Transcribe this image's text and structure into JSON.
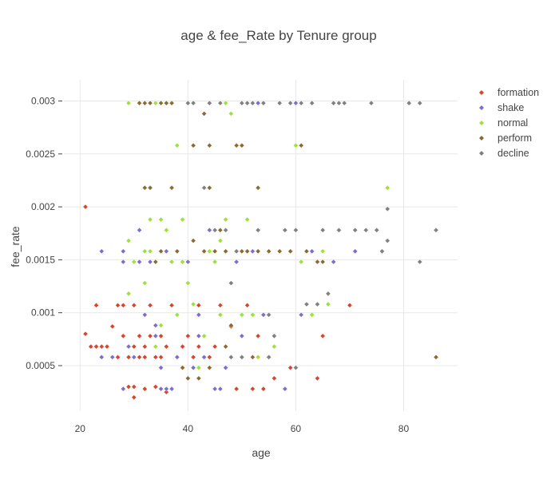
{
  "chart_data": {
    "type": "scatter",
    "title": "age & fee_Rate by Tenure group",
    "xlabel": "age",
    "ylabel": "fee_rate",
    "xlim": [
      17,
      90
    ],
    "ylim": [
      7e-05,
      0.0032
    ],
    "x_ticks": [
      20,
      40,
      60,
      80
    ],
    "y_ticks": [
      0.0005,
      0.001,
      0.0015,
      0.002,
      0.0025,
      0.003
    ],
    "y_tick_labels": [
      "0.0005",
      "0.001",
      "0.0015",
      "0.002",
      "0.0025",
      "0.003"
    ],
    "grid": true,
    "legend_position": "top-right",
    "series": [
      {
        "name": "formation",
        "color": "#d6452c",
        "points": [
          [
            21,
            0.002
          ],
          [
            21,
            0.0008
          ],
          [
            22,
            0.00068
          ],
          [
            23,
            0.00068
          ],
          [
            23,
            0.00107
          ],
          [
            24,
            0.00068
          ],
          [
            25,
            0.00068
          ],
          [
            26,
            0.00087
          ],
          [
            27,
            0.00058
          ],
          [
            27,
            0.00107
          ],
          [
            28,
            0.00107
          ],
          [
            28,
            0.00078
          ],
          [
            29,
            0.00058
          ],
          [
            29,
            0.0003
          ],
          [
            30,
            0.0003
          ],
          [
            30,
            0.00068
          ],
          [
            30,
            0.00107
          ],
          [
            30,
            0.0002
          ],
          [
            31,
            0.00078
          ],
          [
            31,
            0.00058
          ],
          [
            32,
            0.00058
          ],
          [
            32,
            0.00028
          ],
          [
            32,
            0.00068
          ],
          [
            33,
            0.00078
          ],
          [
            33,
            0.00107
          ],
          [
            34,
            0.00058
          ],
          [
            34,
            0.0003
          ],
          [
            35,
            0.00058
          ],
          [
            35,
            0.00078
          ],
          [
            36,
            0.00025
          ],
          [
            36,
            0.00068
          ],
          [
            37,
            0.00028
          ],
          [
            37,
            0.00107
          ],
          [
            38,
            0.00058
          ],
          [
            39,
            0.00068
          ],
          [
            40,
            0.00078
          ],
          [
            41,
            0.00058
          ],
          [
            42,
            0.00107
          ],
          [
            42,
            0.00068
          ],
          [
            43,
            0.00058
          ],
          [
            44,
            0.00058
          ],
          [
            45,
            0.00068
          ],
          [
            46,
            0.00107
          ],
          [
            47,
            0.00048
          ],
          [
            48,
            0.00087
          ],
          [
            49,
            0.00028
          ],
          [
            50,
            0.00058
          ],
          [
            51,
            0.00107
          ],
          [
            52,
            0.00028
          ],
          [
            53,
            0.00078
          ],
          [
            54,
            0.00028
          ],
          [
            55,
            0.00058
          ],
          [
            56,
            0.00038
          ],
          [
            58,
            0.00028
          ],
          [
            59,
            0.00048
          ],
          [
            64,
            0.00038
          ],
          [
            65,
            0.00078
          ],
          [
            70,
            0.00107
          ]
        ]
      },
      {
        "name": "shake",
        "color": "#7a6fd0",
        "points": [
          [
            24,
            0.00158
          ],
          [
            24,
            0.00058
          ],
          [
            26,
            0.00058
          ],
          [
            28,
            0.00148
          ],
          [
            28,
            0.00158
          ],
          [
            28,
            0.00028
          ],
          [
            29,
            0.00068
          ],
          [
            30,
            0.00058
          ],
          [
            31,
            0.00178
          ],
          [
            31,
            0.00148
          ],
          [
            32,
            0.00098
          ],
          [
            33,
            0.00148
          ],
          [
            34,
            0.00078
          ],
          [
            34,
            0.00088
          ],
          [
            35,
            0.00048
          ],
          [
            35,
            0.00028
          ],
          [
            36,
            0.00028
          ],
          [
            36,
            0.00158
          ],
          [
            37,
            0.00028
          ],
          [
            38,
            0.00058
          ],
          [
            39,
            0.00048
          ],
          [
            40,
            0.00148
          ],
          [
            41,
            0.00048
          ],
          [
            42,
            0.00078
          ],
          [
            42,
            0.00098
          ],
          [
            43,
            0.00058
          ],
          [
            44,
            0.00178
          ],
          [
            45,
            0.00028
          ],
          [
            46,
            0.00028
          ],
          [
            47,
            0.00048
          ],
          [
            48,
            0.00058
          ],
          [
            49,
            0.00148
          ],
          [
            50,
            0.00078
          ],
          [
            52,
            0.00158
          ],
          [
            53,
            0.00298
          ],
          [
            54,
            0.00098
          ],
          [
            56,
            0.00078
          ],
          [
            58,
            0.00028
          ],
          [
            60,
            0.00298
          ],
          [
            61,
            0.00098
          ],
          [
            63,
            0.00158
          ],
          [
            67,
            0.00148
          ],
          [
            71,
            0.00158
          ]
        ]
      },
      {
        "name": "normal",
        "color": "#9be33a",
        "points": [
          [
            29,
            0.00298
          ],
          [
            29,
            0.00168
          ],
          [
            29,
            0.00118
          ],
          [
            30,
            0.00148
          ],
          [
            31,
            0.00298
          ],
          [
            32,
            0.00158
          ],
          [
            32,
            0.00128
          ],
          [
            33,
            0.00188
          ],
          [
            33,
            0.00158
          ],
          [
            34,
            0.00298
          ],
          [
            34,
            0.00068
          ],
          [
            35,
            0.00188
          ],
          [
            35,
            0.00158
          ],
          [
            35,
            0.00088
          ],
          [
            36,
            0.00178
          ],
          [
            36,
            0.00298
          ],
          [
            37,
            0.00148
          ],
          [
            38,
            0.00258
          ],
          [
            38,
            0.00098
          ],
          [
            39,
            0.00188
          ],
          [
            39,
            0.00148
          ],
          [
            40,
            0.00128
          ],
          [
            41,
            0.00108
          ],
          [
            42,
            0.00048
          ],
          [
            43,
            0.00078
          ],
          [
            44,
            0.00158
          ],
          [
            45,
            0.00148
          ],
          [
            46,
            0.00098
          ],
          [
            46,
            0.00168
          ],
          [
            47,
            0.00298
          ],
          [
            47,
            0.00188
          ],
          [
            48,
            0.00288
          ],
          [
            49,
            0.00158
          ],
          [
            50,
            0.00098
          ],
          [
            51,
            0.00188
          ],
          [
            52,
            0.00098
          ],
          [
            53,
            0.00058
          ],
          [
            55,
            0.00058
          ],
          [
            56,
            0.00068
          ],
          [
            60,
            0.00258
          ],
          [
            61,
            0.00148
          ],
          [
            63,
            0.00098
          ],
          [
            65,
            0.00158
          ],
          [
            66,
            0.00108
          ],
          [
            76,
            0.00158
          ],
          [
            77,
            0.00218
          ]
        ]
      },
      {
        "name": "perform",
        "color": "#8c6a2f",
        "points": [
          [
            31,
            0.00298
          ],
          [
            32,
            0.00218
          ],
          [
            32,
            0.00298
          ],
          [
            33,
            0.00218
          ],
          [
            33,
            0.00298
          ],
          [
            34,
            0.00148
          ],
          [
            35,
            0.00298
          ],
          [
            35,
            0.00158
          ],
          [
            36,
            0.00298
          ],
          [
            37,
            0.00218
          ],
          [
            37,
            0.00298
          ],
          [
            38,
            0.00158
          ],
          [
            39,
            0.00048
          ],
          [
            40,
            0.00038
          ],
          [
            41,
            0.00258
          ],
          [
            41,
            0.00168
          ],
          [
            42,
            0.00038
          ],
          [
            43,
            0.00288
          ],
          [
            43,
            0.00158
          ],
          [
            44,
            0.00218
          ],
          [
            44,
            0.00258
          ],
          [
            44,
            0.00048
          ],
          [
            45,
            0.00158
          ],
          [
            46,
            0.00178
          ],
          [
            47,
            0.00158
          ],
          [
            47,
            0.00068
          ],
          [
            48,
            0.00088
          ],
          [
            49,
            0.00258
          ],
          [
            50,
            0.00158
          ],
          [
            50,
            0.00258
          ],
          [
            51,
            0.00158
          ],
          [
            52,
            0.00058
          ],
          [
            53,
            0.00218
          ],
          [
            53,
            0.00158
          ],
          [
            55,
            0.00158
          ],
          [
            57,
            0.00158
          ],
          [
            59,
            0.00158
          ],
          [
            61,
            0.00258
          ],
          [
            62,
            0.00158
          ],
          [
            64,
            0.00148
          ],
          [
            65,
            0.00148
          ],
          [
            86,
            0.00058
          ]
        ]
      },
      {
        "name": "decline",
        "color": "#808080",
        "points": [
          [
            40,
            0.00298
          ],
          [
            41,
            0.00298
          ],
          [
            43,
            0.00218
          ],
          [
            44,
            0.00298
          ],
          [
            45,
            0.00178
          ],
          [
            46,
            0.00298
          ],
          [
            47,
            0.00178
          ],
          [
            48,
            0.00128
          ],
          [
            48,
            0.00058
          ],
          [
            49,
            0.00158
          ],
          [
            50,
            0.00298
          ],
          [
            50,
            0.00058
          ],
          [
            51,
            0.00298
          ],
          [
            52,
            0.00298
          ],
          [
            53,
            0.00178
          ],
          [
            54,
            0.00298
          ],
          [
            55,
            0.00058
          ],
          [
            55,
            0.00098
          ],
          [
            56,
            0.00078
          ],
          [
            57,
            0.00298
          ],
          [
            58,
            0.00178
          ],
          [
            59,
            0.00298
          ],
          [
            60,
            0.00178
          ],
          [
            60,
            0.00048
          ],
          [
            61,
            0.00298
          ],
          [
            62,
            0.00108
          ],
          [
            63,
            0.00298
          ],
          [
            64,
            0.00108
          ],
          [
            65,
            0.00178
          ],
          [
            66,
            0.00118
          ],
          [
            67,
            0.00298
          ],
          [
            68,
            0.00298
          ],
          [
            68,
            0.00178
          ],
          [
            69,
            0.00298
          ],
          [
            71,
            0.00178
          ],
          [
            73,
            0.00178
          ],
          [
            74,
            0.00298
          ],
          [
            75,
            0.00178
          ],
          [
            76,
            0.00158
          ],
          [
            77,
            0.00198
          ],
          [
            77,
            0.00168
          ],
          [
            81,
            0.00298
          ],
          [
            83,
            0.00298
          ],
          [
            83,
            0.00148
          ],
          [
            86,
            0.00178
          ]
        ]
      }
    ]
  }
}
